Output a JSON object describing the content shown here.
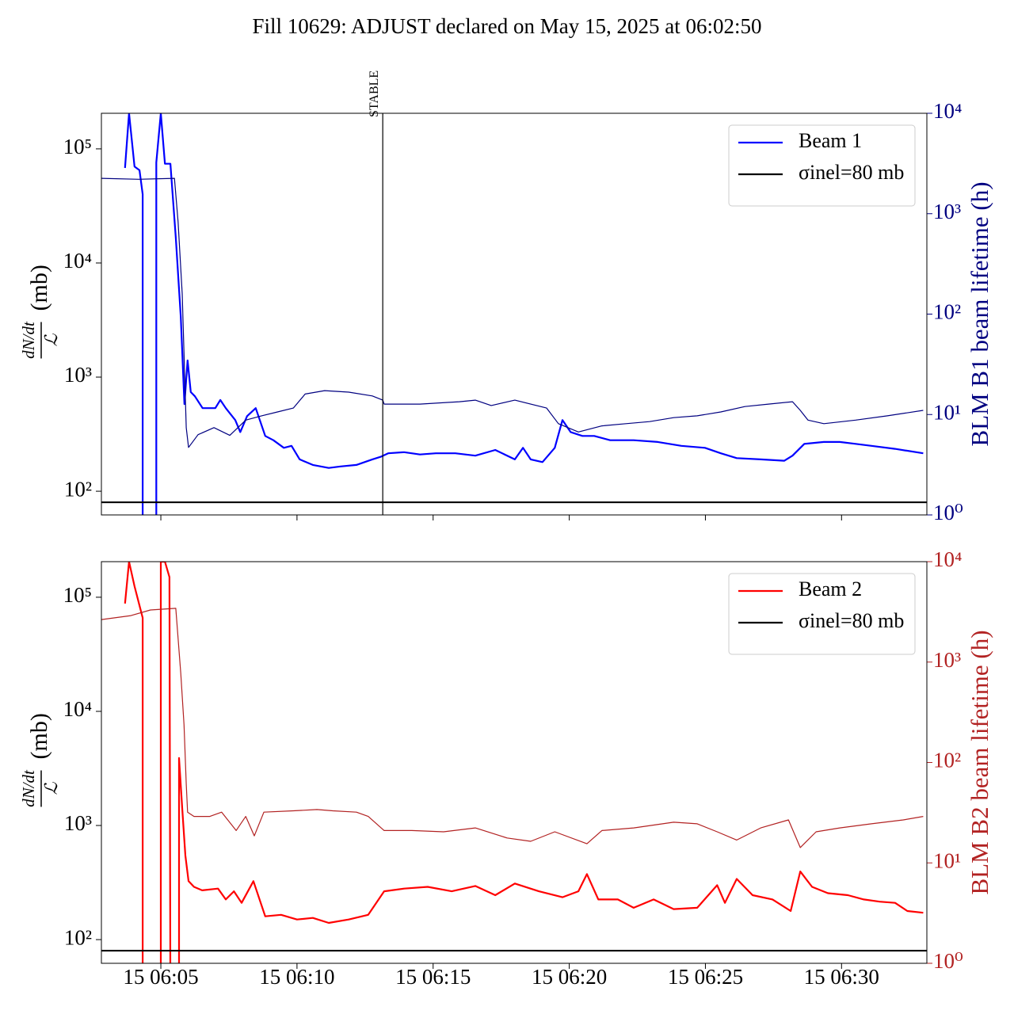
{
  "title": "Fill 10629: ADJUST declared on May 15, 2025 at 06:02:50",
  "chart_data": [
    {
      "type": "line",
      "ylog": true,
      "y2log": true,
      "legend": "upper right",
      "ylabel_numerator": "dN/dt",
      "ylabel_denominator": "ℒ",
      "ylabel_unit": "(mb)",
      "y2label": "BLM B1 beam lifetime (h)",
      "y2color": "#000080",
      "xlim": [
        "15 06:02:49",
        "15 06:33:08"
      ],
      "ylim": [
        62,
        205000
      ],
      "yticks": [
        {
          "value": 100,
          "label": "10²"
        },
        {
          "value": 1000,
          "label": "10³"
        },
        {
          "value": 10000,
          "label": "10⁴"
        },
        {
          "value": 100000,
          "label": "10⁵"
        }
      ],
      "y2lim": [
        1,
        10000
      ],
      "y2ticks": [
        {
          "value": 1,
          "label": "10⁰"
        },
        {
          "value": 10,
          "label": "10¹"
        },
        {
          "value": 100,
          "label": "10²"
        },
        {
          "value": 1000,
          "label": "10³"
        },
        {
          "value": 10000,
          "label": "10⁴"
        }
      ],
      "annotations": [
        {
          "text": "STABLE",
          "x": "15 06:13:09"
        }
      ],
      "hline": {
        "name": "σinel=80 mb",
        "value": 80,
        "color": "#000000"
      },
      "series": [
        {
          "name": "Beam 1",
          "color": "#0000ff",
          "x": [
            "15 06:03:41",
            "15 06:03:50",
            "15 06:04:02",
            "15 06:04:13",
            "15 06:04:20",
            "15 06:04:20",
            "15 06:04:50",
            "15 06:04:50",
            "15 06:05:00",
            "15 06:05:09",
            "15 06:05:21",
            "15 06:05:33",
            "15 06:05:44",
            "15 06:05:52",
            "15 06:05:59",
            "15 06:06:06",
            "15 06:06:15",
            "15 06:06:32",
            "15 06:07:00",
            "15 06:07:11",
            "15 06:07:23",
            "15 06:07:44",
            "15 06:07:55",
            "15 06:08:10",
            "15 06:08:29",
            "15 06:08:50",
            "15 06:09:08",
            "15 06:09:31",
            "15 06:09:48",
            "15 06:10:06",
            "15 06:10:35",
            "15 06:11:10",
            "15 06:11:36",
            "15 06:12:11",
            "15 06:12:46",
            "15 06:13:04",
            "15 06:13:21",
            "15 06:13:56",
            "15 06:14:31",
            "15 06:15:06",
            "15 06:15:49",
            "15 06:16:33",
            "15 06:17:17",
            "15 06:18:00",
            "15 06:18:18",
            "15 06:18:35",
            "15 06:19:01",
            "15 06:19:28",
            "15 06:19:45",
            "15 06:20:03",
            "15 06:20:29",
            "15 06:20:55",
            "15 06:21:30",
            "15 06:22:22",
            "15 06:23:15",
            "15 06:24:07",
            "15 06:24:59",
            "15 06:25:34",
            "15 06:26:09",
            "15 06:27:02",
            "15 06:27:54",
            "15 06:28:12",
            "15 06:28:38",
            "15 06:29:21",
            "15 06:29:56",
            "15 06:30:31",
            "15 06:31:06",
            "15 06:31:58",
            "15 06:33:00"
          ],
          "values": [
            68000,
            205000,
            70000,
            65000,
            40000,
            30,
            30,
            76000,
            205000,
            74000,
            74000,
            16700,
            3370,
            580,
            1400,
            740,
            680,
            535,
            535,
            630,
            535,
            420,
            330,
            455,
            535,
            305,
            280,
            240,
            250,
            190,
            170,
            160,
            165,
            170,
            190,
            200,
            215,
            220,
            210,
            215,
            215,
            205,
            230,
            190,
            240,
            190,
            180,
            240,
            420,
            330,
            305,
            305,
            280,
            280,
            270,
            250,
            240,
            215,
            195,
            190,
            185,
            205,
            260,
            270,
            270,
            260,
            250,
            235,
            215
          ]
        },
        {
          "color": "#000080",
          "axis": "y2",
          "x": [
            "15 06:02:49",
            "15 06:04:11",
            "15 06:05:30",
            "15 06:05:38",
            "15 06:05:47",
            "15 06:05:56",
            "15 06:06:01",
            "15 06:06:22",
            "15 06:06:57",
            "15 06:07:32",
            "15 06:08:07",
            "15 06:08:42",
            "15 06:09:17",
            "15 06:09:52",
            "15 06:10:18",
            "15 06:11:01",
            "15 06:11:54",
            "15 06:12:46",
            "15 06:13:09",
            "15 06:13:12",
            "15 06:14:31",
            "15 06:15:58",
            "15 06:16:33",
            "15 06:17:08",
            "15 06:18:00",
            "15 06:19:10",
            "15 06:19:36",
            "15 06:20:20",
            "15 06:21:12",
            "15 06:22:05",
            "15 06:22:57",
            "15 06:23:50",
            "15 06:24:42",
            "15 06:25:34",
            "15 06:26:27",
            "15 06:27:19",
            "15 06:28:12",
            "15 06:28:29",
            "15 06:28:46",
            "15 06:29:21",
            "15 06:30:31",
            "15 06:31:41",
            "15 06:33:00"
          ],
          "values": [
            2250,
            2200,
            2250,
            830,
            160,
            7.4,
            4.7,
            6.3,
            7.4,
            6.2,
            8.8,
            9.7,
            10.6,
            11.6,
            16,
            17.3,
            16.7,
            15.3,
            13.9,
            12.7,
            12.7,
            13.4,
            13.9,
            12.3,
            13.9,
            11.6,
            8.1,
            6.7,
            7.7,
            8.1,
            8.5,
            9.3,
            9.7,
            10.6,
            12.0,
            12.7,
            13.4,
            11.0,
            8.8,
            8.1,
            8.8,
            9.7,
            11.0
          ]
        }
      ]
    },
    {
      "type": "line",
      "ylog": true,
      "y2log": true,
      "legend": "upper right",
      "ylabel_numerator": "dN/dt",
      "ylabel_denominator": "ℒ",
      "ylabel_unit": "(mb)",
      "y2label": "BLM B2 beam lifetime (h)",
      "y2color": "#b22222",
      "xlim": [
        "15 06:02:49",
        "15 06:33:08"
      ],
      "xticks": [
        "15 06:05",
        "15 06:10",
        "15 06:15",
        "15 06:20",
        "15 06:25",
        "15 06:30"
      ],
      "ylim": [
        62,
        205000
      ],
      "yticks": [
        {
          "value": 100,
          "label": "10²"
        },
        {
          "value": 1000,
          "label": "10³"
        },
        {
          "value": 10000,
          "label": "10⁴"
        },
        {
          "value": 100000,
          "label": "10⁵"
        }
      ],
      "y2lim": [
        1,
        10000
      ],
      "y2ticks": [
        {
          "value": 1,
          "label": "10⁰"
        },
        {
          "value": 10,
          "label": "10¹"
        },
        {
          "value": 100,
          "label": "10²"
        },
        {
          "value": 1000,
          "label": "10³"
        },
        {
          "value": 10000,
          "label": "10⁴"
        }
      ],
      "hline": {
        "name": "σinel=80 mb",
        "value": 80,
        "color": "#000000"
      },
      "series": [
        {
          "name": "Beam 2",
          "color": "#ff0000",
          "x": [
            "15 06:03:41",
            "15 06:03:50",
            "15 06:04:02",
            "15 06:04:20",
            "15 06:04:20",
            "15 06:05:00",
            "15 06:05:00",
            "15 06:05:09",
            "15 06:05:19",
            "15 06:05:21",
            "15 06:05:40",
            "15 06:05:40",
            "15 06:05:47",
            "15 06:05:54",
            "15 06:06:01",
            "15 06:06:13",
            "15 06:06:31",
            "15 06:07:06",
            "15 06:07:23",
            "15 06:07:41",
            "15 06:07:58",
            "15 06:08:24",
            "15 06:08:50",
            "15 06:09:25",
            "15 06:10:00",
            "15 06:10:35",
            "15 06:11:10",
            "15 06:11:54",
            "15 06:12:37",
            "15 06:13:12",
            "15 06:13:56",
            "15 06:14:48",
            "15 06:15:41",
            "15 06:16:33",
            "15 06:17:17",
            "15 06:18:00",
            "15 06:18:53",
            "15 06:19:45",
            "15 06:20:20",
            "15 06:20:39",
            "15 06:21:04",
            "15 06:21:47",
            "15 06:22:22",
            "15 06:23:06",
            "15 06:23:50",
            "15 06:24:42",
            "15 06:25:26",
            "15 06:25:43",
            "15 06:26:09",
            "15 06:26:44",
            "15 06:27:28",
            "15 06:28:08",
            "15 06:28:29",
            "15 06:28:55",
            "15 06:29:30",
            "15 06:30:14",
            "15 06:30:49",
            "15 06:31:24",
            "15 06:31:58",
            "15 06:32:25",
            "15 06:33:00"
          ],
          "values": [
            88000,
            205000,
            125000,
            66000,
            30,
            30,
            205000,
            205000,
            150000,
            30,
            30,
            3900,
            1420,
            545,
            325,
            290,
            270,
            280,
            225,
            265,
            210,
            325,
            160,
            165,
            150,
            155,
            140,
            150,
            165,
            265,
            280,
            290,
            265,
            295,
            245,
            310,
            265,
            235,
            265,
            375,
            225,
            225,
            190,
            225,
            185,
            190,
            300,
            210,
            340,
            245,
            225,
            178,
            395,
            290,
            255,
            245,
            225,
            215,
            210,
            178,
            172
          ]
        },
        {
          "color": "#b22222",
          "axis": "y2",
          "x": [
            "15 06:02:49",
            "15 06:03:54",
            "15 06:04:37",
            "15 06:05:33",
            "15 06:05:44",
            "15 06:05:51",
            "15 06:05:56",
            "15 06:05:59",
            "15 06:06:13",
            "15 06:06:48",
            "15 06:07:14",
            "15 06:07:46",
            "15 06:08:07",
            "15 06:08:26",
            "15 06:08:47",
            "15 06:09:52",
            "15 06:10:44",
            "15 06:11:19",
            "15 06:12:11",
            "15 06:12:37",
            "15 06:13:12",
            "15 06:14:13",
            "15 06:15:23",
            "15 06:16:33",
            "15 06:17:43",
            "15 06:18:35",
            "15 06:19:28",
            "15 06:20:39",
            "15 06:21:12",
            "15 06:22:22",
            "15 06:23:50",
            "15 06:24:42",
            "15 06:25:26",
            "15 06:26:09",
            "15 06:27:02",
            "15 06:28:03",
            "15 06:28:29",
            "15 06:29:04",
            "15 06:29:56",
            "15 06:31:06",
            "15 06:32:16",
            "15 06:33:00"
          ],
          "values": [
            2650,
            2900,
            3300,
            3430,
            770,
            237,
            61,
            32,
            29,
            29,
            32,
            21,
            29,
            18.6,
            32,
            33,
            34,
            33,
            32,
            29,
            21,
            21,
            20.4,
            22.3,
            17.7,
            16.4,
            20.4,
            15.5,
            21,
            22.3,
            25.4,
            24.5,
            20.4,
            16.9,
            22.3,
            26.8,
            14.2,
            20.4,
            22.3,
            24.5,
            26.8,
            29
          ]
        }
      ]
    }
  ]
}
